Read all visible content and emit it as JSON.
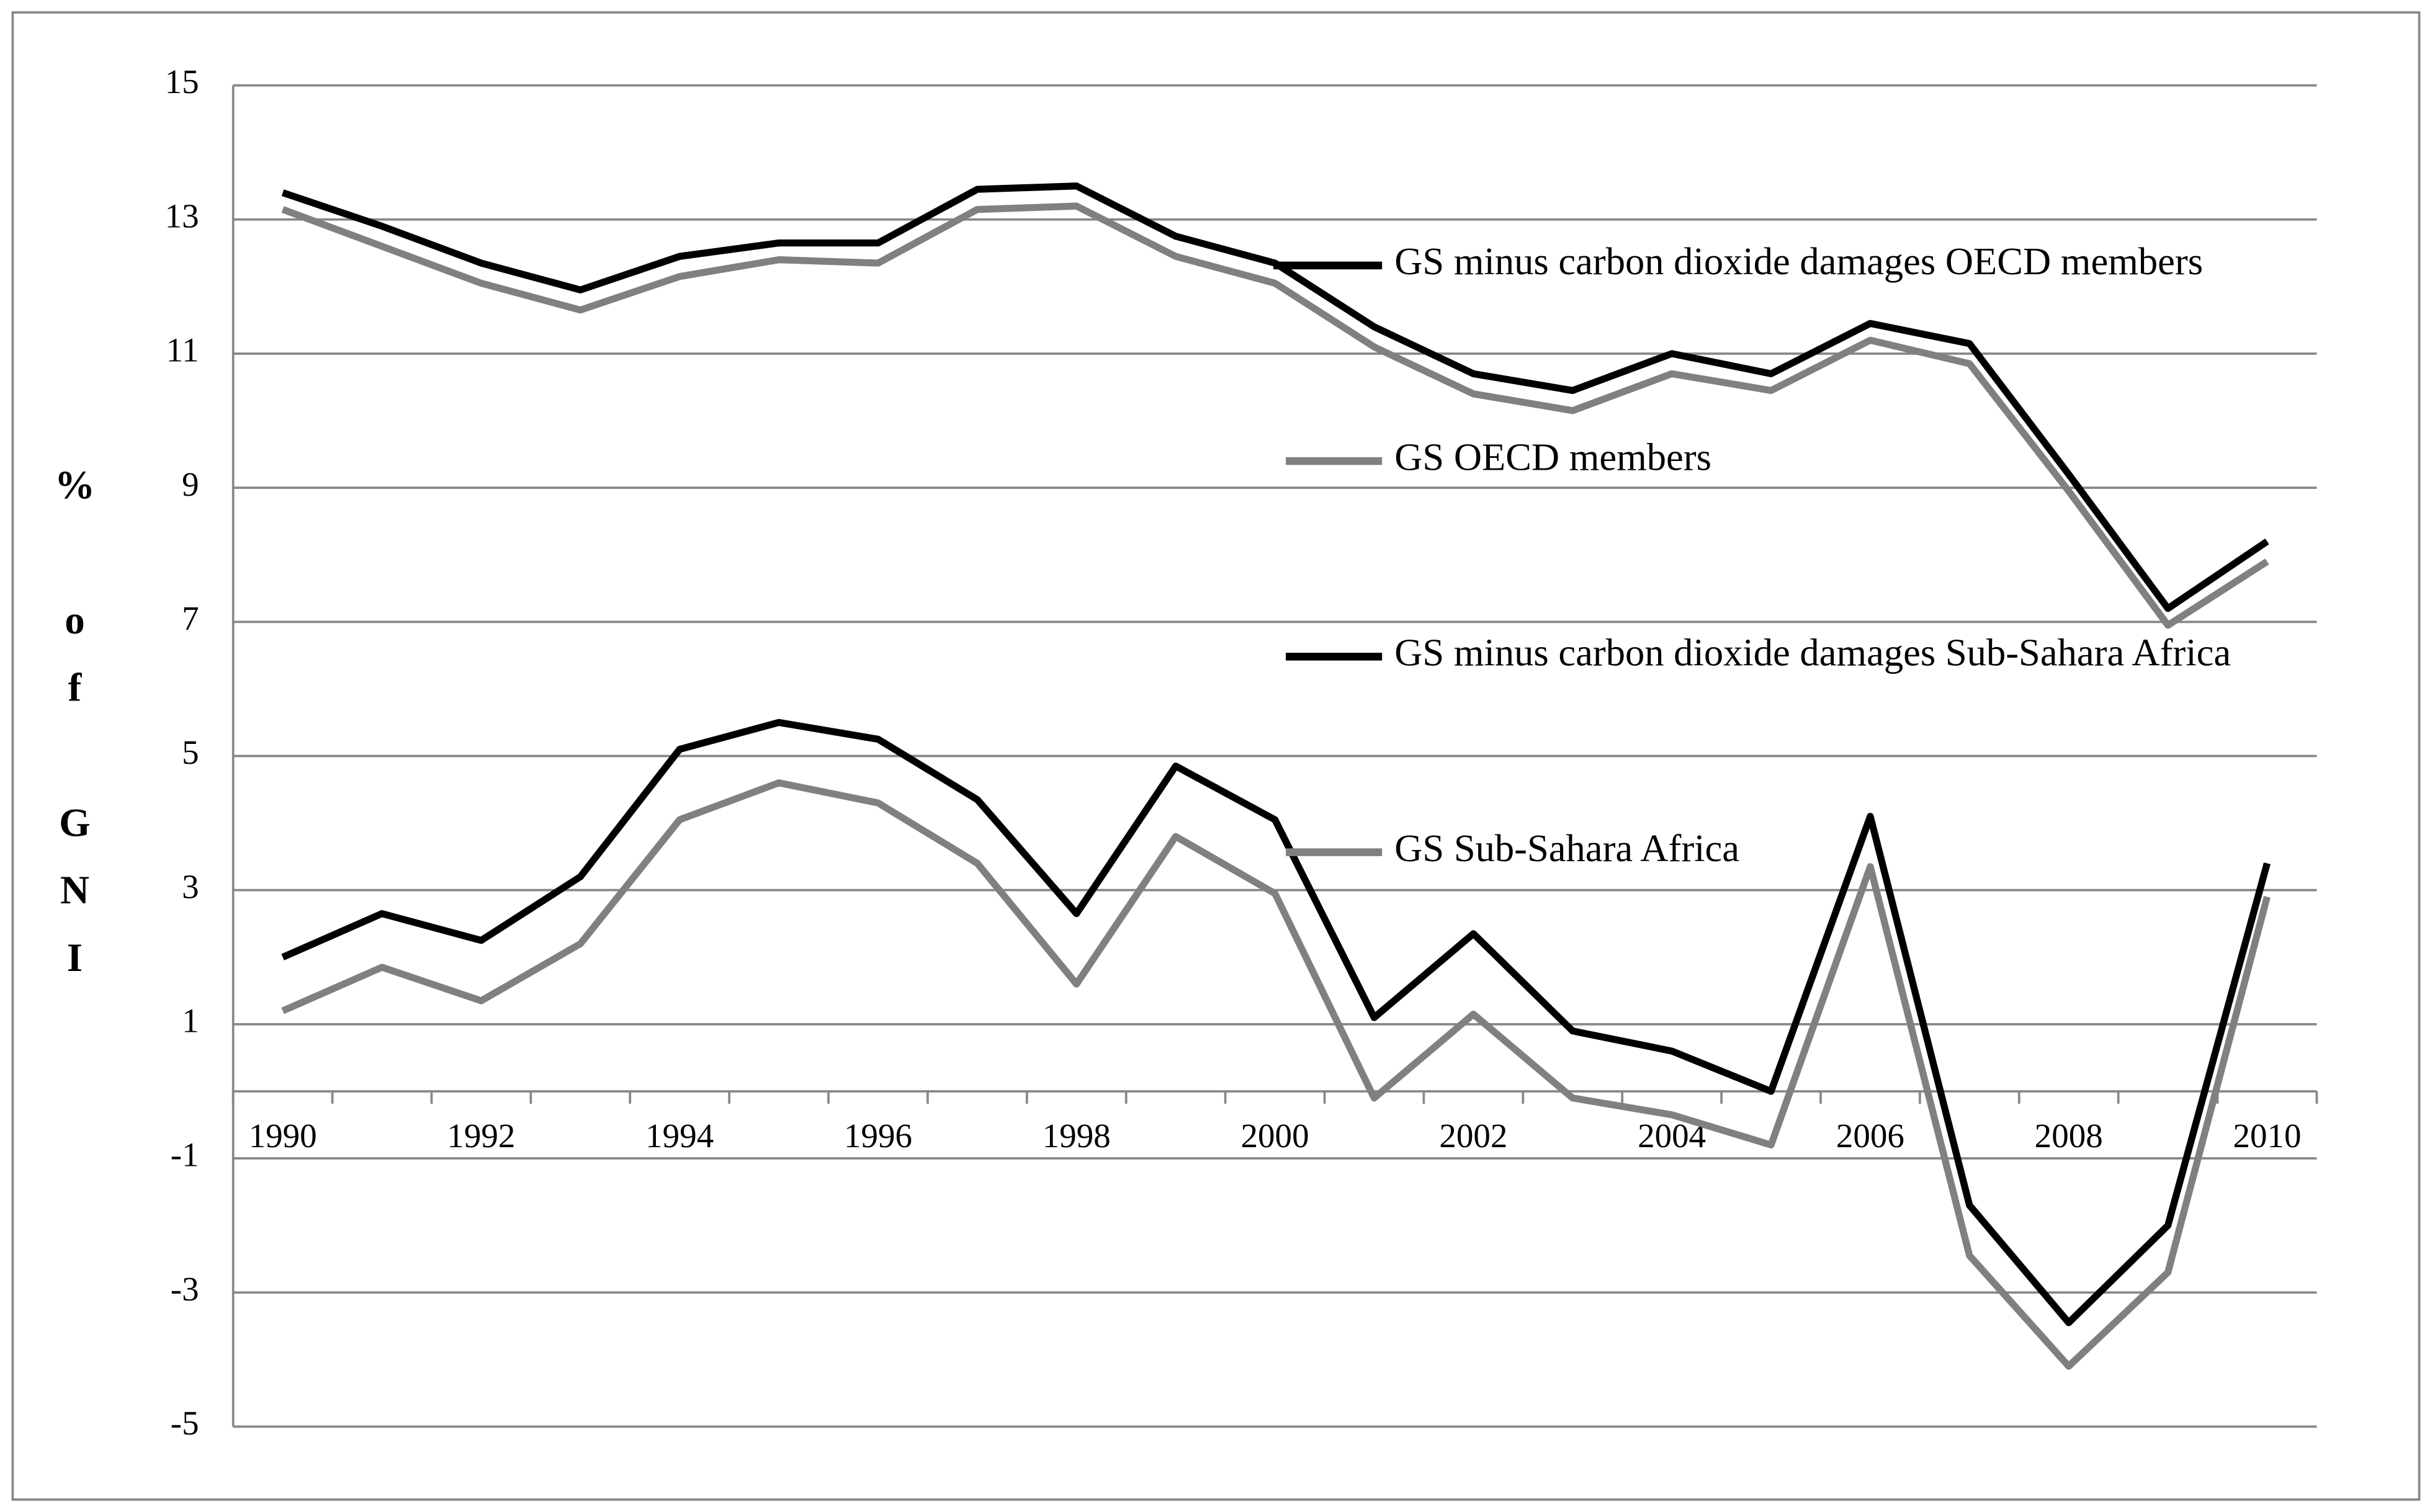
{
  "chart_data": {
    "type": "line",
    "y_label": "% of GNI",
    "categories": [
      "1990",
      null,
      "1992",
      null,
      "1994",
      null,
      "1996",
      null,
      "1998",
      null,
      "2000",
      null,
      "2002",
      null,
      "2004",
      null,
      "2006",
      null,
      "2008",
      null,
      "2010"
    ],
    "ylim": [
      -5,
      15
    ],
    "yticks": [
      -5,
      -3,
      -1,
      1,
      3,
      5,
      7,
      9,
      11,
      13,
      15
    ],
    "grid": true,
    "series": [
      {
        "name": "GS minus carbon dioxide damages OECD members",
        "color": "#000000",
        "values": [
          13.4,
          12.9,
          12.35,
          11.95,
          12.45,
          12.65,
          12.65,
          13.45,
          13.5,
          12.75,
          12.35,
          11.4,
          10.7,
          10.45,
          11.0,
          10.7,
          11.45,
          11.15,
          9.2,
          7.2,
          8.2
        ]
      },
      {
        "name": "GS OECD members",
        "color": "#808080",
        "values": [
          13.15,
          12.6,
          12.05,
          11.65,
          12.15,
          12.4,
          12.35,
          13.15,
          13.2,
          12.45,
          12.05,
          11.1,
          10.4,
          10.15,
          10.7,
          10.45,
          11.2,
          10.85,
          8.95,
          6.95,
          7.9
        ]
      },
      {
        "name": "GS minus carbon dioxide damages Sub-Sahara Africa",
        "color": "#000000",
        "values": [
          2.0,
          2.65,
          2.25,
          3.2,
          5.1,
          5.5,
          5.25,
          4.35,
          2.65,
          4.85,
          4.05,
          1.1,
          2.35,
          0.9,
          0.6,
          0.0,
          4.1,
          -1.7,
          -3.45,
          -2.0,
          3.4
        ]
      },
      {
        "name": "GS Sub-Sahara Africa",
        "color": "#808080",
        "values": [
          1.2,
          1.85,
          1.35,
          2.2,
          4.05,
          4.6,
          4.3,
          3.4,
          1.6,
          3.8,
          2.95,
          -0.1,
          1.15,
          -0.1,
          -0.35,
          -0.8,
          3.35,
          -2.45,
          -4.1,
          -2.7,
          2.9
        ]
      }
    ]
  }
}
